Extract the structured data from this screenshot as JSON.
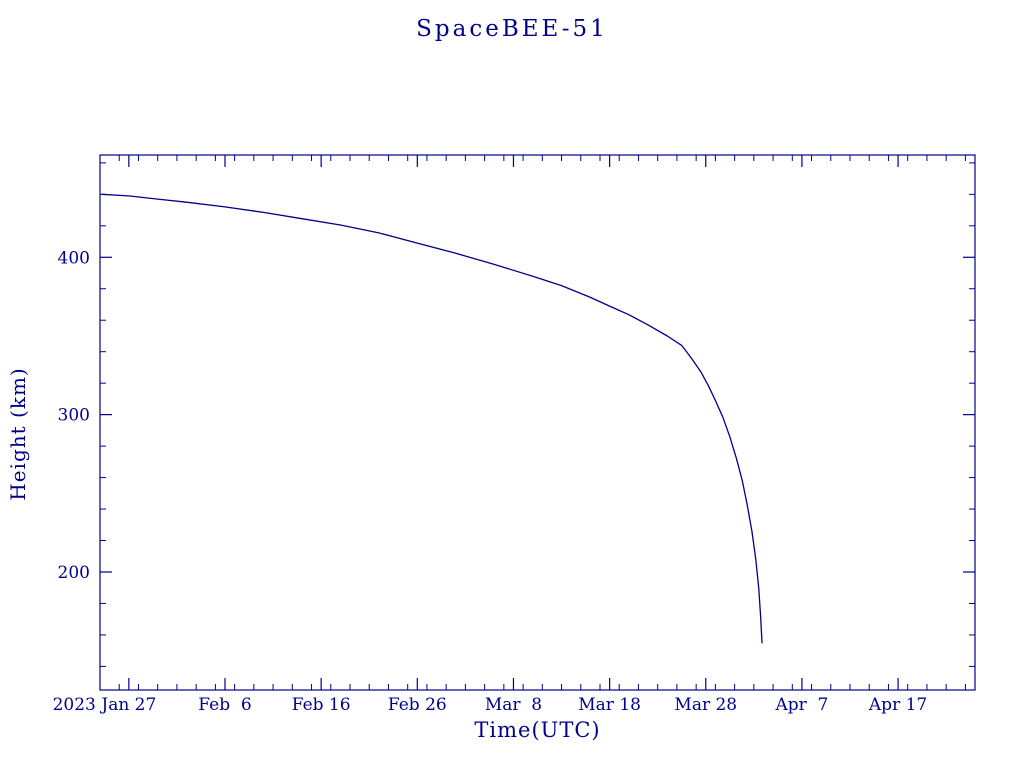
{
  "page": {
    "background_color": "#ffffff",
    "accent_color": "#00008b"
  },
  "chart": {
    "title": "SpaceBEE-51",
    "xlabel": "Time(UTC)",
    "ylabel": "Height (km)",
    "year_label": "2023"
  },
  "chart_data": {
    "type": "line",
    "title": "SpaceBEE-51",
    "xlabel": "Time(UTC)",
    "ylabel": "Height (km)",
    "line_color": "#00008b",
    "grid": false,
    "legend": "none",
    "x_unit": "day-of-year 2023",
    "xlim": [
      24,
      115
    ],
    "ylim": [
      125,
      465
    ],
    "x_ticks": [
      {
        "day": 27,
        "label": "Jan 27"
      },
      {
        "day": 37,
        "label": "Feb  6"
      },
      {
        "day": 47,
        "label": "Feb 16"
      },
      {
        "day": 57,
        "label": "Feb 26"
      },
      {
        "day": 67,
        "label": "Mar  8"
      },
      {
        "day": 77,
        "label": "Mar 18"
      },
      {
        "day": 87,
        "label": "Mar 28"
      },
      {
        "day": 97,
        "label": "Apr  7"
      },
      {
        "day": 107,
        "label": "Apr 17"
      }
    ],
    "year_label": "2023",
    "y_ticks": [
      200,
      300,
      400
    ],
    "minor_x_step": 2,
    "minor_y_step": 20,
    "series": [
      {
        "name": "SpaceBEE-51 height",
        "x": [
          24.2,
          27,
          30,
          33,
          37,
          41,
          45,
          49,
          53,
          57,
          61,
          65,
          69,
          72,
          75,
          77,
          79,
          81,
          83,
          84.5,
          85.5,
          86.5,
          87.3,
          88.0,
          88.8,
          89.5,
          90.2,
          90.8,
          91.3,
          91.8,
          92.2,
          92.5,
          92.7,
          92.85
        ],
        "y": [
          440,
          439,
          437,
          435,
          432,
          428.5,
          424.5,
          420.5,
          415.5,
          409,
          402.5,
          395.5,
          388,
          382,
          374.5,
          369,
          363.5,
          357,
          350,
          344,
          336,
          327,
          318,
          309,
          298,
          286,
          272,
          258,
          243,
          226,
          208,
          190,
          172,
          155
        ]
      }
    ]
  }
}
